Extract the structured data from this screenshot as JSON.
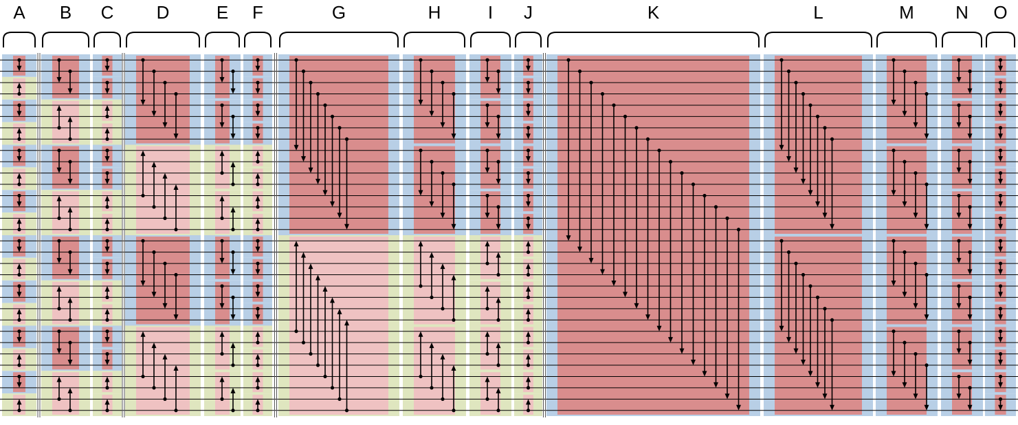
{
  "title": "",
  "diagram": {
    "type": "bitonic-sorting-network",
    "wire_count": 32,
    "colors": {
      "descending_box": "#d98d8d",
      "ascending_box": "#efc2c2",
      "stage_down_background": "#b8cfe6",
      "stage_up_background": "#dfe6bf",
      "wire": "#000000",
      "comparator": "#000000"
    },
    "stages": [
      {
        "label": "A",
        "box_size": 2,
        "merge": "global"
      },
      {
        "label": "B",
        "box_size": 4,
        "merge": "global"
      },
      {
        "label": "C",
        "box_size": 2,
        "merge": "global"
      },
      {
        "label": "D",
        "box_size": 8,
        "merge": "global"
      },
      {
        "label": "E",
        "box_size": 4,
        "merge": "global"
      },
      {
        "label": "F",
        "box_size": 2,
        "merge": "global"
      },
      {
        "label": "G",
        "box_size": 16,
        "merge": "global"
      },
      {
        "label": "H",
        "box_size": 8,
        "merge": "global"
      },
      {
        "label": "I",
        "box_size": 4,
        "merge": "global"
      },
      {
        "label": "J",
        "box_size": 2,
        "merge": "global"
      },
      {
        "label": "K",
        "box_size": 32,
        "merge": "global"
      },
      {
        "label": "L",
        "box_size": 16,
        "merge": "half"
      },
      {
        "label": "M",
        "box_size": 8,
        "merge": "half"
      },
      {
        "label": "N",
        "box_size": 4,
        "merge": "half"
      },
      {
        "label": "O",
        "box_size": 2,
        "merge": "half"
      }
    ]
  }
}
